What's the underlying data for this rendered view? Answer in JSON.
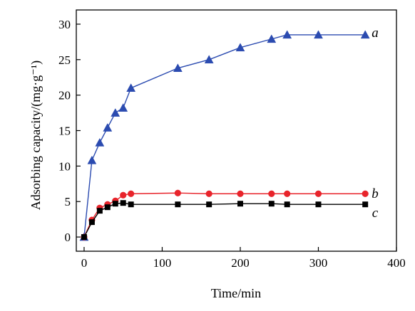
{
  "chart_data": {
    "type": "line",
    "xlabel": "Time/min",
    "ylabel": "Adsorbing capacity/(mg·g⁻¹)",
    "xlim": [
      -10,
      400
    ],
    "ylim": [
      -2,
      32
    ],
    "xticks": [
      0,
      100,
      200,
      300,
      400
    ],
    "yticks": [
      0,
      5,
      10,
      15,
      20,
      25,
      30
    ],
    "xtick_labels": [
      "0",
      "100",
      "200",
      "300",
      "400"
    ],
    "ytick_labels": [
      "0",
      "5",
      "10",
      "15",
      "20",
      "25",
      "30"
    ],
    "grid": false,
    "legend": "none",
    "series": [
      {
        "name": "a",
        "color": "#2b4bb0",
        "marker": "triangle",
        "x": [
          0,
          10,
          20,
          30,
          40,
          50,
          60,
          120,
          160,
          200,
          240,
          260,
          300,
          360
        ],
        "y": [
          0,
          10.8,
          13.3,
          15.4,
          17.5,
          18.2,
          21.0,
          23.8,
          25.0,
          26.7,
          27.9,
          28.5,
          28.5,
          28.5
        ]
      },
      {
        "name": "b",
        "color": "#e8242b",
        "marker": "circle",
        "x": [
          0,
          10,
          20,
          30,
          40,
          50,
          60,
          120,
          160,
          200,
          240,
          260,
          300,
          360
        ],
        "y": [
          0,
          2.4,
          4.1,
          4.6,
          5.1,
          5.9,
          6.1,
          6.2,
          6.1,
          6.1,
          6.1,
          6.1,
          6.1,
          6.1
        ]
      },
      {
        "name": "c",
        "color": "#000000",
        "marker": "square",
        "x": [
          0,
          10,
          20,
          30,
          40,
          50,
          60,
          120,
          160,
          200,
          240,
          260,
          300,
          360
        ],
        "y": [
          0,
          2.1,
          3.7,
          4.2,
          4.7,
          4.8,
          4.6,
          4.6,
          4.6,
          4.7,
          4.7,
          4.6,
          4.6,
          4.6
        ]
      }
    ]
  }
}
